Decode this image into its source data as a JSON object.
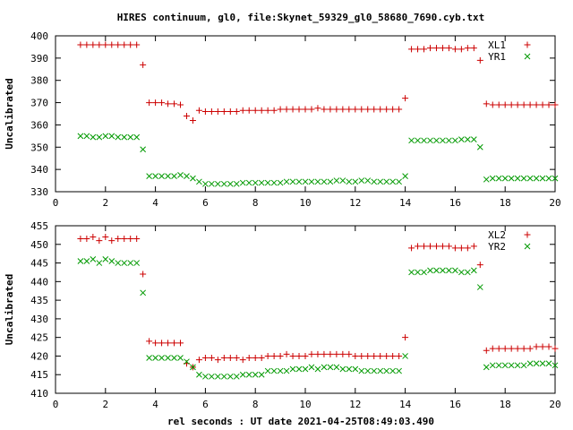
{
  "title": "HIRES continuum, gl0, file:Skynet_59329_gl0_58680_7690.cyb.txt",
  "xlabel": "rel seconds : UT date 2021-04-25T08:49:03.490",
  "colors": {
    "plus": "#cc0000",
    "x": "#009900"
  },
  "chart_data": [
    {
      "type": "scatter",
      "ylabel": "Uncalibrated",
      "xlim": [
        0,
        20
      ],
      "ylim": [
        330,
        400
      ],
      "xticks": [
        0,
        2,
        4,
        6,
        8,
        10,
        12,
        14,
        16,
        18,
        20
      ],
      "yticks": [
        330,
        340,
        350,
        360,
        370,
        380,
        390,
        400
      ],
      "legend": "top-right",
      "grid": false,
      "series": [
        {
          "name": "XL1",
          "marker": "plus",
          "x": [
            1.0,
            1.25,
            1.5,
            1.75,
            2.0,
            2.25,
            2.5,
            2.75,
            3.0,
            3.25,
            3.5,
            3.75,
            4.0,
            4.25,
            4.5,
            4.75,
            5.0,
            5.25,
            5.5,
            5.75,
            6.0,
            6.25,
            6.5,
            6.75,
            7.0,
            7.25,
            7.5,
            7.75,
            8.0,
            8.25,
            8.5,
            8.75,
            9.0,
            9.25,
            9.5,
            9.75,
            10.0,
            10.25,
            10.5,
            10.75,
            11.0,
            11.25,
            11.5,
            11.75,
            12.0,
            12.25,
            12.5,
            12.75,
            13.0,
            13.25,
            13.5,
            13.75,
            14.0,
            14.25,
            14.5,
            14.75,
            15.0,
            15.25,
            15.5,
            15.75,
            16.0,
            16.25,
            16.5,
            16.75,
            17.0,
            17.25,
            17.5,
            17.75,
            18.0,
            18.25,
            18.5,
            18.75,
            19.0,
            19.25,
            19.5,
            19.75,
            20.0
          ],
          "y": [
            396,
            396,
            396,
            396,
            396,
            396,
            396,
            396,
            396,
            396,
            387,
            370,
            370,
            370,
            369.5,
            369.5,
            369,
            364,
            362,
            366.5,
            366,
            366,
            366,
            366,
            366,
            366,
            366.5,
            366.5,
            366.5,
            366.5,
            366.5,
            366.5,
            367,
            367,
            367,
            367,
            367,
            367,
            367.5,
            367,
            367,
            367,
            367,
            367,
            367,
            367,
            367,
            367,
            367,
            367,
            367,
            367,
            372,
            394,
            394,
            394,
            394.5,
            394.5,
            394.5,
            394.5,
            394,
            394,
            394.5,
            394.5,
            389,
            369.5,
            369,
            369,
            369,
            369,
            369,
            369,
            369,
            369,
            369,
            369,
            369
          ]
        },
        {
          "name": "YR1",
          "marker": "x",
          "x": [
            1.0,
            1.25,
            1.5,
            1.75,
            2.0,
            2.25,
            2.5,
            2.75,
            3.0,
            3.25,
            3.5,
            3.75,
            4.0,
            4.25,
            4.5,
            4.75,
            5.0,
            5.25,
            5.5,
            5.75,
            6.0,
            6.25,
            6.5,
            6.75,
            7.0,
            7.25,
            7.5,
            7.75,
            8.0,
            8.25,
            8.5,
            8.75,
            9.0,
            9.25,
            9.5,
            9.75,
            10.0,
            10.25,
            10.5,
            10.75,
            11.0,
            11.25,
            11.5,
            11.75,
            12.0,
            12.25,
            12.5,
            12.75,
            13.0,
            13.25,
            13.5,
            13.75,
            14.0,
            14.25,
            14.5,
            14.75,
            15.0,
            15.25,
            15.5,
            15.75,
            16.0,
            16.25,
            16.5,
            16.75,
            17.0,
            17.25,
            17.5,
            17.75,
            18.0,
            18.25,
            18.5,
            18.75,
            19.0,
            19.25,
            19.5,
            19.75,
            20.0
          ],
          "y": [
            355,
            355,
            354.5,
            354.5,
            355,
            355,
            354.5,
            354.5,
            354.5,
            354.5,
            349,
            337,
            337,
            337,
            337,
            337,
            337.5,
            337,
            336,
            334.5,
            333.5,
            333.5,
            333.5,
            333.5,
            333.5,
            333.5,
            334,
            334,
            334,
            334,
            334,
            334,
            334,
            334.5,
            334.5,
            334.5,
            334.5,
            334.5,
            334.5,
            334.5,
            334.5,
            335,
            335,
            334.5,
            334.5,
            335,
            335,
            334.5,
            334.5,
            334.5,
            334.5,
            334.5,
            337,
            353,
            353,
            353,
            353,
            353,
            353,
            353,
            353,
            353.5,
            353.5,
            353.5,
            350,
            335.5,
            336,
            336,
            336,
            336,
            336,
            336,
            336,
            336,
            336,
            336,
            336
          ]
        }
      ]
    },
    {
      "type": "scatter",
      "ylabel": "Uncalibrated",
      "xlabel": "rel seconds : UT date 2021-04-25T08:49:03.490",
      "xlim": [
        0,
        20
      ],
      "ylim": [
        410,
        455
      ],
      "xticks": [
        0,
        2,
        4,
        6,
        8,
        10,
        12,
        14,
        16,
        18,
        20
      ],
      "yticks": [
        410,
        415,
        420,
        425,
        430,
        435,
        440,
        445,
        450,
        455
      ],
      "legend": "top-right",
      "grid": false,
      "series": [
        {
          "name": "XL2",
          "marker": "plus",
          "x": [
            1.0,
            1.25,
            1.5,
            1.75,
            2.0,
            2.25,
            2.5,
            2.75,
            3.0,
            3.25,
            3.5,
            3.75,
            4.0,
            4.25,
            4.5,
            4.75,
            5.0,
            5.25,
            5.5,
            5.75,
            6.0,
            6.25,
            6.5,
            6.75,
            7.0,
            7.25,
            7.5,
            7.75,
            8.0,
            8.25,
            8.5,
            8.75,
            9.0,
            9.25,
            9.5,
            9.75,
            10.0,
            10.25,
            10.5,
            10.75,
            11.0,
            11.25,
            11.5,
            11.75,
            12.0,
            12.25,
            12.5,
            12.75,
            13.0,
            13.25,
            13.5,
            13.75,
            14.0,
            14.25,
            14.5,
            14.75,
            15.0,
            15.25,
            15.5,
            15.75,
            16.0,
            16.25,
            16.5,
            16.75,
            17.0,
            17.25,
            17.5,
            17.75,
            18.0,
            18.25,
            18.5,
            18.75,
            19.0,
            19.25,
            19.5,
            19.75,
            20.0
          ],
          "y": [
            451.5,
            451.5,
            452,
            451,
            452,
            451,
            451.5,
            451.5,
            451.5,
            451.5,
            442,
            424,
            423.5,
            423.5,
            423.5,
            423.5,
            423.5,
            418,
            417,
            419,
            419.5,
            419.5,
            419,
            419.5,
            419.5,
            419.5,
            419,
            419.5,
            419.5,
            419.5,
            420,
            420,
            420,
            420.5,
            420,
            420,
            420,
            420.5,
            420.5,
            420.5,
            420.5,
            420.5,
            420.5,
            420.5,
            420,
            420,
            420,
            420,
            420,
            420,
            420,
            420,
            425,
            449,
            449.5,
            449.5,
            449.5,
            449.5,
            449.5,
            449.5,
            449,
            449,
            449,
            449.5,
            444.5,
            421.5,
            422,
            422,
            422,
            422,
            422,
            422,
            422,
            422.5,
            422.5,
            422.5,
            422
          ]
        },
        {
          "name": "YR2",
          "marker": "x",
          "x": [
            1.0,
            1.25,
            1.5,
            1.75,
            2.0,
            2.25,
            2.5,
            2.75,
            3.0,
            3.25,
            3.5,
            3.75,
            4.0,
            4.25,
            4.5,
            4.75,
            5.0,
            5.25,
            5.5,
            5.75,
            6.0,
            6.25,
            6.5,
            6.75,
            7.0,
            7.25,
            7.5,
            7.75,
            8.0,
            8.25,
            8.5,
            8.75,
            9.0,
            9.25,
            9.5,
            9.75,
            10.0,
            10.25,
            10.5,
            10.75,
            11.0,
            11.25,
            11.5,
            11.75,
            12.0,
            12.25,
            12.5,
            12.75,
            13.0,
            13.25,
            13.5,
            13.75,
            14.0,
            14.25,
            14.5,
            14.75,
            15.0,
            15.25,
            15.5,
            15.75,
            16.0,
            16.25,
            16.5,
            16.75,
            17.0,
            17.25,
            17.5,
            17.75,
            18.0,
            18.25,
            18.5,
            18.75,
            19.0,
            19.25,
            19.5,
            19.75,
            20.0
          ],
          "y": [
            445.5,
            445.5,
            446,
            445,
            446,
            445.5,
            445,
            445,
            445,
            445,
            437,
            419.5,
            419.5,
            419.5,
            419.5,
            419.5,
            419.5,
            418.5,
            417,
            415,
            414.5,
            414.5,
            414.5,
            414.5,
            414.5,
            414.5,
            415,
            415,
            415,
            415,
            416,
            416,
            416,
            416,
            416.5,
            416.5,
            416.5,
            417,
            416.5,
            417,
            417,
            417,
            416.5,
            416.5,
            416.5,
            416,
            416,
            416,
            416,
            416,
            416,
            416,
            420,
            442.5,
            442.5,
            442.5,
            443,
            443,
            443,
            443,
            443,
            442.5,
            442.5,
            443,
            438.5,
            417,
            417.5,
            417.5,
            417.5,
            417.5,
            417.5,
            417.5,
            418,
            418,
            418,
            418,
            417.5
          ]
        }
      ]
    }
  ]
}
